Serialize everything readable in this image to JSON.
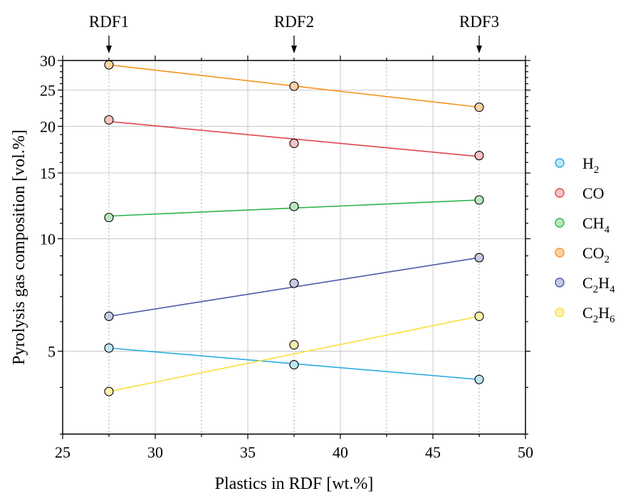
{
  "chart_data": {
    "type": "scatter",
    "xlabel": "Plastics in RDF [wt.%]",
    "ylabel": "Pyrolysis gas composition [vol.%]",
    "xlim": [
      25,
      50
    ],
    "ylim": [
      3,
      30
    ],
    "yscale": "log",
    "x_ticks": [
      25,
      30,
      35,
      40,
      45,
      50
    ],
    "y_ticks": [
      5,
      10,
      15,
      20,
      25,
      30
    ],
    "grid": true,
    "legend_position": "right",
    "annotations": [
      {
        "label": "RDF1",
        "x": 27.5
      },
      {
        "label": "RDF2",
        "x": 37.5
      },
      {
        "label": "RDF3",
        "x": 47.5
      }
    ],
    "x": [
      27.5,
      37.5,
      47.5
    ],
    "series": [
      {
        "name": "H2",
        "base": "H",
        "sub": "2",
        "color": "#29abe2",
        "fill": "#bfe6f5",
        "values": [
          5.1,
          4.6,
          4.2
        ],
        "fit": [
          5.1,
          4.6,
          4.2
        ]
      },
      {
        "name": "CO",
        "base": "CO",
        "sub": "",
        "color": "#e0464f",
        "fill": "#f7c3c5",
        "values": [
          20.8,
          18.0,
          16.7
        ],
        "fit": [
          20.6,
          18.5,
          16.6
        ]
      },
      {
        "name": "CH4",
        "base": "CH",
        "sub": "4",
        "color": "#2db34a",
        "fill": "#b9e7bf",
        "values": [
          11.4,
          12.2,
          12.7
        ],
        "fit": [
          11.5,
          12.1,
          12.7
        ]
      },
      {
        "name": "CO2",
        "base": "CO",
        "sub": "2",
        "color": "#f7931e",
        "fill": "#fbd3a8",
        "values": [
          29.2,
          25.6,
          22.5
        ],
        "fit": [
          29.2,
          25.7,
          22.5
        ]
      },
      {
        "name": "C2H4",
        "base": "C",
        "sub": "2",
        "base2": "H",
        "sub2": "4",
        "color": "#4b5aa8",
        "fill": "#c6c9e3",
        "values": [
          6.2,
          7.6,
          8.9
        ],
        "fit": [
          6.2,
          7.4,
          8.9
        ]
      },
      {
        "name": "C2H6",
        "base": "C",
        "sub": "2",
        "base2": "H",
        "sub2": "6",
        "color": "#f7e13a",
        "fill": "#fbf3ad",
        "values": [
          3.9,
          5.2,
          6.2
        ],
        "fit": [
          3.9,
          4.9,
          6.2
        ]
      }
    ]
  }
}
